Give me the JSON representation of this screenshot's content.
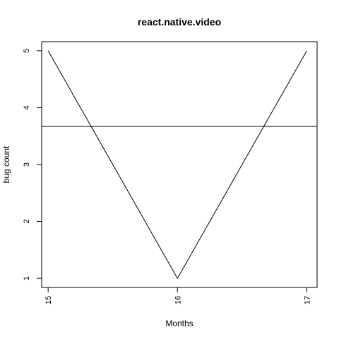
{
  "chart_data": {
    "type": "line",
    "title": "react.native.video",
    "xlabel": "Months",
    "ylabel": "bug count",
    "x": [
      15,
      16,
      17
    ],
    "series": [
      {
        "values": [
          5,
          1,
          5
        ],
        "color": "#000000"
      }
    ],
    "reference_lines": [
      {
        "orientation": "horizontal",
        "y": 3.67,
        "color": "#000000"
      }
    ],
    "xlim": [
      14.95,
      17.08
    ],
    "ylim": [
      0.84,
      5.16
    ],
    "x_ticks": [
      15,
      16,
      17
    ],
    "y_ticks": [
      1,
      2,
      3,
      4,
      5
    ],
    "grid": false,
    "legend": "none"
  }
}
